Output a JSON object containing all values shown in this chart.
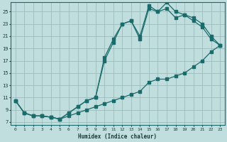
{
  "xlabel": "Humidex (Indice chaleur)",
  "bg_color": "#c0dede",
  "grid_color": "#9cbcbc",
  "line_color": "#1a6b6b",
  "xlim": [
    -0.5,
    23.5
  ],
  "ylim": [
    6.5,
    26.5
  ],
  "xticks": [
    0,
    1,
    2,
    3,
    4,
    5,
    6,
    7,
    8,
    9,
    10,
    11,
    12,
    13,
    14,
    15,
    16,
    17,
    18,
    19,
    20,
    21,
    22,
    23
  ],
  "yticks": [
    7,
    9,
    11,
    13,
    15,
    17,
    19,
    21,
    23,
    25
  ],
  "figsize": [
    3.2,
    2.0
  ],
  "dpi": 100,
  "line1_x": [
    0,
    1,
    2,
    3,
    4,
    5,
    6,
    7,
    8,
    9,
    10,
    11,
    12,
    13,
    14,
    15,
    16,
    17,
    18,
    19,
    20,
    21,
    22,
    23
  ],
  "line1_y": [
    10.5,
    8.5,
    8.0,
    8.0,
    7.8,
    7.5,
    8.0,
    8.5,
    9.0,
    9.5,
    10.0,
    10.5,
    11.0,
    11.5,
    12.0,
    13.5,
    14.0,
    14.0,
    14.5,
    15.0,
    16.0,
    17.0,
    18.5,
    19.5
  ],
  "line2_x": [
    0,
    1,
    2,
    3,
    4,
    5,
    6,
    7,
    8,
    9,
    10,
    11,
    12,
    13,
    14,
    15,
    16,
    17,
    18,
    19,
    20,
    21,
    22,
    23
  ],
  "line2_y": [
    10.5,
    8.5,
    8.0,
    8.0,
    7.8,
    7.5,
    8.5,
    9.5,
    10.5,
    11.0,
    17.5,
    20.5,
    23.0,
    23.5,
    20.5,
    25.5,
    25.0,
    25.5,
    24.0,
    24.5,
    23.5,
    22.5,
    20.5,
    19.5
  ],
  "line3_x": [
    0,
    1,
    2,
    3,
    4,
    5,
    6,
    7,
    8,
    9,
    10,
    11,
    12,
    13,
    14,
    15,
    16,
    17,
    18,
    19,
    20,
    21,
    22,
    23
  ],
  "line3_y": [
    10.5,
    8.5,
    8.0,
    8.0,
    7.8,
    7.5,
    8.5,
    9.5,
    10.5,
    11.0,
    17.0,
    20.0,
    23.0,
    23.5,
    21.0,
    26.0,
    25.0,
    26.5,
    25.0,
    24.5,
    24.0,
    23.0,
    21.0,
    19.5
  ]
}
